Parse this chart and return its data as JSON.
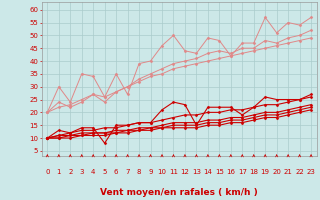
{
  "bg_color": "#cce8e8",
  "grid_color": "#aacccc",
  "xlabel": "Vent moyen/en rafales ( km/h )",
  "xlabel_color": "#cc0000",
  "xlabel_fontsize": 6.5,
  "ylabel_ticks": [
    5,
    10,
    15,
    20,
    25,
    30,
    35,
    40,
    45,
    50,
    55,
    60
  ],
  "xlim": [
    -0.5,
    23.5
  ],
  "ylim": [
    3,
    63
  ],
  "xticks": [
    0,
    1,
    2,
    3,
    4,
    5,
    6,
    7,
    8,
    9,
    10,
    11,
    12,
    13,
    14,
    15,
    16,
    17,
    18,
    19,
    20,
    21,
    22,
    23
  ],
  "lines_light": [
    {
      "x": [
        0,
        1,
        2,
        3,
        4,
        5,
        6,
        7,
        8,
        9,
        10,
        11,
        12,
        13,
        14,
        15,
        16,
        17,
        18,
        19,
        20,
        21,
        22,
        23
      ],
      "y": [
        20,
        30,
        24,
        35,
        34,
        26,
        35,
        27,
        39,
        40,
        46,
        50,
        44,
        43,
        49,
        48,
        42,
        47,
        47,
        57,
        51,
        55,
        54,
        57
      ]
    },
    {
      "x": [
        0,
        1,
        2,
        3,
        4,
        5,
        6,
        7,
        8,
        9,
        10,
        11,
        12,
        13,
        14,
        15,
        16,
        17,
        18,
        19,
        20,
        21,
        22,
        23
      ],
      "y": [
        20,
        24,
        22,
        24,
        27,
        24,
        28,
        30,
        33,
        35,
        37,
        39,
        40,
        41,
        43,
        44,
        43,
        45,
        45,
        48,
        47,
        49,
        50,
        52
      ]
    },
    {
      "x": [
        0,
        1,
        2,
        3,
        4,
        5,
        6,
        7,
        8,
        9,
        10,
        11,
        12,
        13,
        14,
        15,
        16,
        17,
        18,
        19,
        20,
        21,
        22,
        23
      ],
      "y": [
        20,
        22,
        23,
        25,
        27,
        26,
        28,
        30,
        32,
        34,
        35,
        37,
        38,
        39,
        40,
        41,
        42,
        43,
        44,
        45,
        46,
        47,
        48,
        49
      ]
    }
  ],
  "lines_dark": [
    {
      "x": [
        0,
        1,
        2,
        3,
        4,
        5,
        6,
        7,
        8,
        9,
        10,
        11,
        12,
        13,
        14,
        15,
        16,
        17,
        18,
        19,
        20,
        21,
        22,
        23
      ],
      "y": [
        10,
        13,
        12,
        14,
        14,
        8,
        15,
        15,
        16,
        16,
        21,
        24,
        23,
        15,
        22,
        22,
        22,
        19,
        22,
        26,
        25,
        25,
        25,
        27
      ]
    },
    {
      "x": [
        0,
        1,
        2,
        3,
        4,
        5,
        6,
        7,
        8,
        9,
        10,
        11,
        12,
        13,
        14,
        15,
        16,
        17,
        18,
        19,
        20,
        21,
        22,
        23
      ],
      "y": [
        10,
        11,
        12,
        13,
        13,
        14,
        14,
        15,
        16,
        16,
        17,
        18,
        19,
        19,
        20,
        20,
        21,
        21,
        22,
        23,
        23,
        24,
        25,
        26
      ]
    },
    {
      "x": [
        0,
        1,
        2,
        3,
        4,
        5,
        6,
        7,
        8,
        9,
        10,
        11,
        12,
        13,
        14,
        15,
        16,
        17,
        18,
        19,
        20,
        21,
        22,
        23
      ],
      "y": [
        10,
        11,
        11,
        12,
        12,
        12,
        13,
        13,
        14,
        14,
        15,
        16,
        16,
        16,
        17,
        17,
        18,
        18,
        19,
        20,
        20,
        21,
        22,
        23
      ]
    },
    {
      "x": [
        0,
        1,
        2,
        3,
        4,
        5,
        6,
        7,
        8,
        9,
        10,
        11,
        12,
        13,
        14,
        15,
        16,
        17,
        18,
        19,
        20,
        21,
        22,
        23
      ],
      "y": [
        10,
        10,
        11,
        11,
        12,
        12,
        12,
        13,
        13,
        14,
        14,
        15,
        15,
        15,
        16,
        16,
        17,
        17,
        18,
        19,
        19,
        20,
        21,
        22
      ]
    },
    {
      "x": [
        0,
        1,
        2,
        3,
        4,
        5,
        6,
        7,
        8,
        9,
        10,
        11,
        12,
        13,
        14,
        15,
        16,
        17,
        18,
        19,
        20,
        21,
        22,
        23
      ],
      "y": [
        10,
        10,
        10,
        11,
        11,
        11,
        12,
        12,
        13,
        13,
        14,
        14,
        14,
        14,
        15,
        15,
        16,
        16,
        17,
        18,
        18,
        19,
        20,
        21
      ]
    }
  ],
  "color_light": "#e08888",
  "color_dark": "#cc0000",
  "marker_size": 1.5,
  "linewidth_light": 0.7,
  "linewidth_dark": 0.8,
  "tick_fontsize": 5.0,
  "tick_color": "#cc0000"
}
